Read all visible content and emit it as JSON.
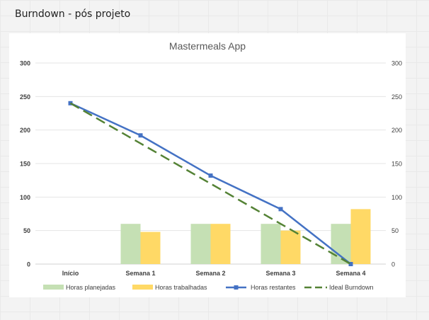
{
  "page": {
    "title": "Burndown - pós projeto"
  },
  "chart_data": {
    "type": "bar",
    "title": "Mastermeals App",
    "categories": [
      "Início",
      "Semana 1",
      "Semana 2",
      "Semana 3",
      "Semana 4"
    ],
    "ylim": [
      0,
      300
    ],
    "yticks": [
      0,
      50,
      100,
      150,
      200,
      250,
      300
    ],
    "secondary_ylim": [
      0,
      300
    ],
    "grid": true,
    "legend_position": "bottom",
    "series": [
      {
        "name": "Horas planejadas",
        "type": "bar",
        "color": "#c5e0b4",
        "values": [
          0,
          60,
          60,
          60,
          60
        ]
      },
      {
        "name": "Horas trabalhadas",
        "type": "bar",
        "color": "#ffd966",
        "values": [
          0,
          48,
          60,
          50,
          82
        ]
      },
      {
        "name": "Horas restantes",
        "type": "line",
        "color": "#4472c4",
        "marker": "square",
        "values": [
          240,
          192,
          132,
          82,
          0
        ]
      },
      {
        "name": "Ideal Burndown",
        "type": "line",
        "color": "#548235",
        "dash": "long-dash",
        "values": [
          240,
          180,
          120,
          60,
          0
        ]
      }
    ]
  }
}
